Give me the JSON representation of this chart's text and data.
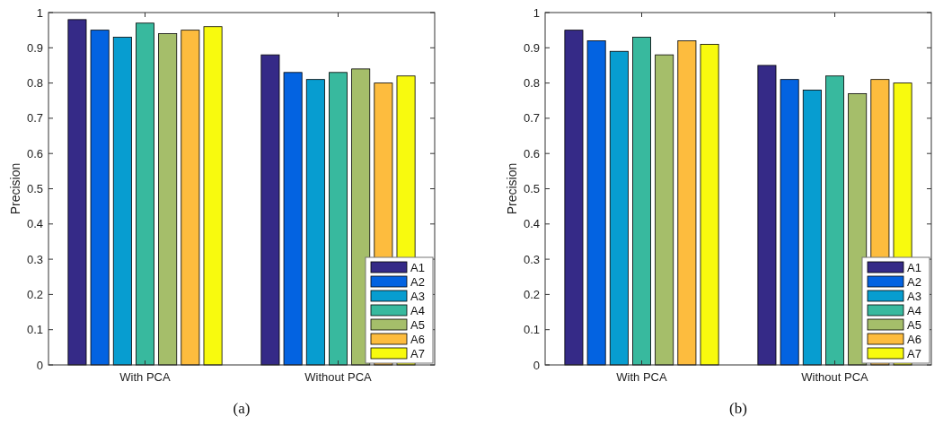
{
  "chart_data": [
    {
      "type": "bar",
      "ylabel": "Precision",
      "categories": [
        "With PCA",
        "Without PCA"
      ],
      "series": [
        {
          "name": "A1",
          "color": "#352a87",
          "values": [
            0.98,
            0.88
          ]
        },
        {
          "name": "A2",
          "color": "#0363e1",
          "values": [
            0.95,
            0.83
          ]
        },
        {
          "name": "A3",
          "color": "#079dd0",
          "values": [
            0.93,
            0.81
          ]
        },
        {
          "name": "A4",
          "color": "#38b99e",
          "values": [
            0.97,
            0.83
          ]
        },
        {
          "name": "A5",
          "color": "#a5be6a",
          "values": [
            0.94,
            0.84
          ]
        },
        {
          "name": "A6",
          "color": "#fdbc3e",
          "values": [
            0.95,
            0.8
          ]
        },
        {
          "name": "A7",
          "color": "#f8fa0e",
          "values": [
            0.96,
            0.82
          ]
        }
      ],
      "ylim": [
        0,
        1
      ],
      "yticks": [
        0,
        0.1,
        0.2,
        0.3,
        0.4,
        0.5,
        0.6,
        0.7,
        0.8,
        0.9,
        1
      ],
      "grid": false,
      "legend": "bottom right",
      "annotations": [
        "(a)"
      ]
    },
    {
      "type": "bar",
      "ylabel": "Precision",
      "categories": [
        "With PCA",
        "Without PCA"
      ],
      "series": [
        {
          "name": "A1",
          "color": "#352a87",
          "values": [
            0.95,
            0.85
          ]
        },
        {
          "name": "A2",
          "color": "#0363e1",
          "values": [
            0.92,
            0.81
          ]
        },
        {
          "name": "A3",
          "color": "#079dd0",
          "values": [
            0.89,
            0.78
          ]
        },
        {
          "name": "A4",
          "color": "#38b99e",
          "values": [
            0.93,
            0.82
          ]
        },
        {
          "name": "A5",
          "color": "#a5be6a",
          "values": [
            0.88,
            0.77
          ]
        },
        {
          "name": "A6",
          "color": "#fdbc3e",
          "values": [
            0.92,
            0.81
          ]
        },
        {
          "name": "A7",
          "color": "#f8fa0e",
          "values": [
            0.91,
            0.8
          ]
        }
      ],
      "ylim": [
        0,
        1
      ],
      "yticks": [
        0,
        0.1,
        0.2,
        0.3,
        0.4,
        0.5,
        0.6,
        0.7,
        0.8,
        0.9,
        1
      ],
      "grid": false,
      "legend": "bottom right",
      "annotations": [
        "(b)"
      ]
    }
  ]
}
